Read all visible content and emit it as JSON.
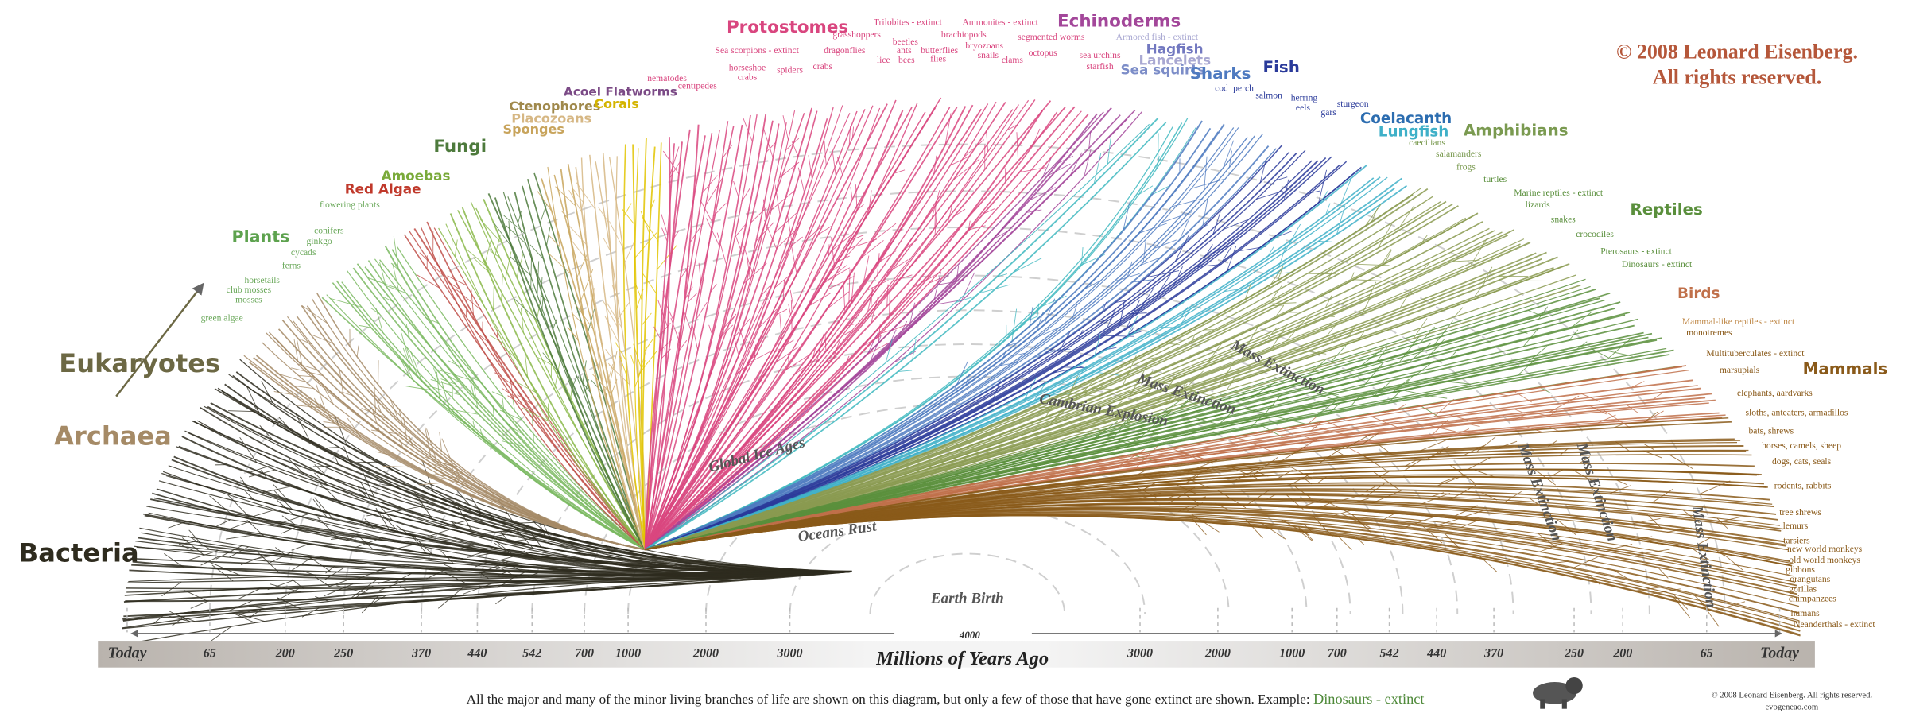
{
  "groups": [
    "Bacteria",
    "Archaea",
    "Eukaryotes",
    "Plants",
    "Red Algae",
    "Amoebas",
    "Fungi",
    "Sponges",
    "Placozoans",
    "Ctenophores",
    "Corals",
    "Acoel Flatworms",
    "Protostomes",
    "Echinoderms",
    "Hagfish",
    "Lancelets",
    "Sea squirts",
    "Sharks",
    "Fish",
    "Coelacanth",
    "Lungfish",
    "Amphibians",
    "Reptiles",
    "Birds",
    "Mammals"
  ],
  "branches": [
    "flowering plants",
    "conifers",
    "ginkgo",
    "cycads",
    "ferns",
    "horsetails",
    "club mosses",
    "mosses",
    "green algae",
    "nematodes",
    "centipedes",
    "Sea scorpions - extinct",
    "horseshoe",
    "crabs",
    "spiders",
    "crabs",
    "dragonflies",
    "grasshoppers",
    "Trilobites - extinct",
    "beetles",
    "ants",
    "bees",
    "lice",
    "butterflies",
    "flies",
    "brachiopods",
    "Ammonites - extinct",
    "bryozoans",
    "snails",
    "clams",
    "segmented worms",
    "octopus",
    "sea urchins",
    "starfish",
    "Armored fish - extinct",
    "cod",
    "perch",
    "salmon",
    "herring",
    "eels",
    "gars",
    "sturgeon",
    "caecilians",
    "salamanders",
    "frogs",
    "turtles",
    "Marine reptiles - extinct",
    "lizards",
    "snakes",
    "crocodiles",
    "Pterosaurs - extinct",
    "Dinosaurs - extinct",
    "Mammal-like reptiles - extinct",
    "monotremes",
    "Multituberculates - extinct",
    "marsupials",
    "elephants, aardvarks",
    "sloths, anteaters, armadillos",
    "bats, shrews",
    "horses, camels, sheep",
    "dogs, cats, seals",
    "rodents, rabbits",
    "tree shrews",
    "lemurs",
    "tarsiers",
    "new world monkeys",
    "old world monkeys",
    "gibbons",
    "orangutans",
    "gorillas",
    "chimpanzees",
    "humans",
    "Neanderthals - extinct"
  ],
  "events": [
    "Global Ice Ages",
    "Oceans Rust",
    "Earth Birth",
    "Cambrian Explosion",
    "Mass Extinction",
    "Mass Extinction",
    "Mass Extinction",
    "Mass Extinction",
    "Mass Extinction"
  ],
  "copyright": [
    "© 2008 Leonard Eisenberg.",
    "All rights reserved."
  ],
  "timeline": {
    "left": [
      "Today",
      "65",
      "200",
      "250",
      "370",
      "440",
      "542",
      "700",
      "1000",
      "2000",
      "3000"
    ],
    "peak": "4000",
    "title": "Millions of Years Ago",
    "right": [
      "3000",
      "2000",
      "1000",
      "700",
      "542",
      "440",
      "370",
      "250",
      "200",
      "65",
      "Today"
    ]
  },
  "footer": {
    "note": "All the major and many of the minor living branches of life are shown on this diagram, but only a few of those that have gone extinct are shown. Example: ",
    "example": "Dinosaurs - extinct",
    "credit": "© 2008 Leonard Eisenberg. All rights reserved.",
    "site": "evogeneao.com"
  }
}
